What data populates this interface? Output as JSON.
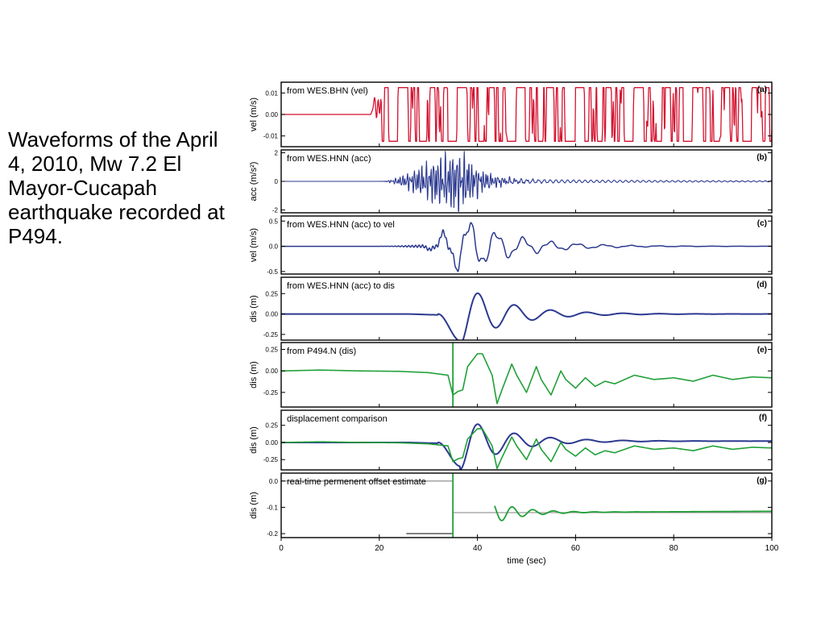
{
  "caption": "Waveforms of the April 4, 2010, Mw 7.2 El Mayor-Cucapah earthquake recorded at P494.",
  "colors": {
    "red": "#d4122f",
    "blue": "#2b3990",
    "green": "#21a038",
    "gray": "#9a9a9a",
    "darkgray": "#666666"
  },
  "chart_data": [
    {
      "type": "line",
      "panel": "(a)",
      "title": "from WES.BHN (vel)",
      "ylabel": "vel (m/s)",
      "ylim": [
        -0.015,
        0.015
      ],
      "yticks": [
        {
          "v": 0.01,
          "t": "0.01"
        },
        {
          "v": 0.0,
          "t": "0.00"
        },
        {
          "v": -0.01,
          "t": "-0.01"
        }
      ],
      "xlim": [
        0,
        100
      ],
      "signal": "vel_saturated",
      "series": [
        {
          "color": "red"
        }
      ]
    },
    {
      "type": "line",
      "panel": "(b)",
      "title": "from WES.HNN (acc)",
      "ylabel": "acc (m/s²)",
      "ylim": [
        -2.2,
        2.2
      ],
      "yticks": [
        {
          "v": 2,
          "t": "2"
        },
        {
          "v": 0,
          "t": "0"
        },
        {
          "v": -2,
          "t": "-2"
        }
      ],
      "xlim": [
        0,
        100
      ],
      "signal": "acc",
      "series": [
        {
          "color": "blue"
        }
      ]
    },
    {
      "type": "line",
      "panel": "(c)",
      "title": "from WES.HNN (acc) to vel",
      "ylabel": "vel (m/s)",
      "ylim": [
        -0.55,
        0.6
      ],
      "yticks": [
        {
          "v": 0.5,
          "t": "0.5"
        },
        {
          "v": 0.0,
          "t": "0.0"
        },
        {
          "v": -0.5,
          "t": "-0.5"
        }
      ],
      "xlim": [
        0,
        100
      ],
      "signal": "vel_int",
      "series": [
        {
          "color": "blue"
        }
      ]
    },
    {
      "type": "line",
      "panel": "(d)",
      "title": "from WES.HNN (acc) to dis",
      "ylabel": "dis (m)",
      "ylim": [
        -0.32,
        0.45
      ],
      "yticks": [
        {
          "v": 0.25,
          "t": "0.25"
        },
        {
          "v": 0.0,
          "t": "0.00"
        },
        {
          "v": -0.25,
          "t": "-0.25"
        }
      ],
      "xlim": [
        0,
        100
      ],
      "signal": "dis",
      "series": [
        {
          "color": "blue"
        }
      ]
    },
    {
      "type": "line",
      "panel": "(e)",
      "title": "from P494.N (dis)",
      "ylabel": "dis (m)",
      "ylim": [
        -0.42,
        0.33
      ],
      "yticks": [
        {
          "v": 0.25,
          "t": "0.25"
        },
        {
          "v": 0.0,
          "t": "0.00"
        },
        {
          "v": -0.25,
          "t": "-0.25"
        }
      ],
      "xlim": [
        0,
        100
      ],
      "signal": "gps",
      "vline": 35,
      "series": [
        {
          "color": "green"
        }
      ]
    },
    {
      "type": "line",
      "panel": "(f)",
      "title": "displacement comparison",
      "ylabel": "dis (m)",
      "ylim": [
        -0.4,
        0.47
      ],
      "yticks": [
        {
          "v": 0.25,
          "t": "0.25"
        },
        {
          "v": 0.0,
          "t": "0.00"
        },
        {
          "v": -0.25,
          "t": "-0.25"
        }
      ],
      "xlim": [
        0,
        100
      ],
      "signal": "compare",
      "series": [
        {
          "color": "blue"
        },
        {
          "color": "green"
        }
      ]
    },
    {
      "type": "line",
      "panel": "(g)",
      "title": "real-time permenent offset estimate",
      "ylabel": "dis (m)",
      "ylim": [
        -0.215,
        0.03
      ],
      "yticks": [
        {
          "v": 0.0,
          "t": "0.0"
        },
        {
          "v": -0.1,
          "t": "-0.1"
        },
        {
          "v": -0.2,
          "t": "-0.2"
        }
      ],
      "xlim": [
        0,
        100
      ],
      "signal": "offset",
      "vline": 35,
      "xlabel": "time (sec)",
      "xticks": [
        0,
        20,
        40,
        60,
        80,
        100
      ],
      "series": [
        {
          "color": "green"
        }
      ]
    }
  ]
}
